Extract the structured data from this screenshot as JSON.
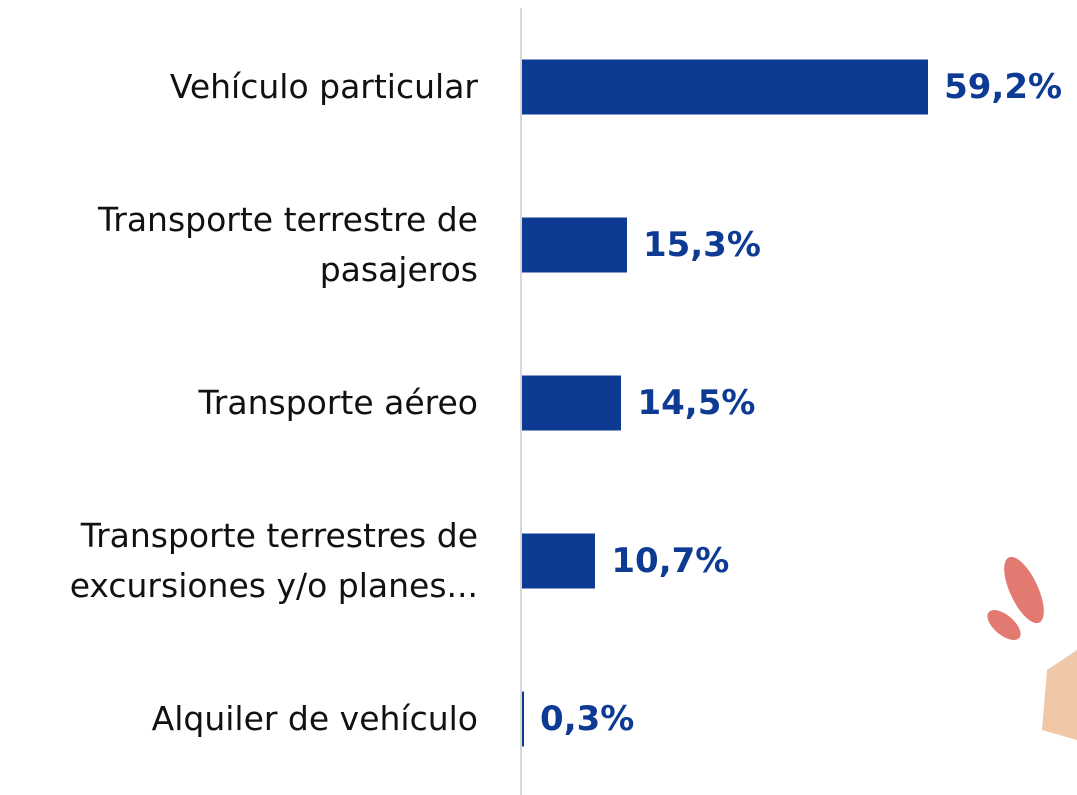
{
  "chart_data": {
    "type": "bar",
    "orientation": "horizontal",
    "categories": [
      "Vehículo particular",
      "Transporte terrestre de pasajeros",
      "Transporte aéreo",
      "Transporte terrestres de excursiones y/o planes...",
      "Alquiler de vehículo"
    ],
    "values": [
      59.2,
      15.3,
      14.5,
      10.7,
      0.3
    ],
    "value_labels": [
      "59,2%",
      "15,3%",
      "14,5%",
      "10,7%",
      "0,3%"
    ],
    "color": "#0d3b94"
  }
}
